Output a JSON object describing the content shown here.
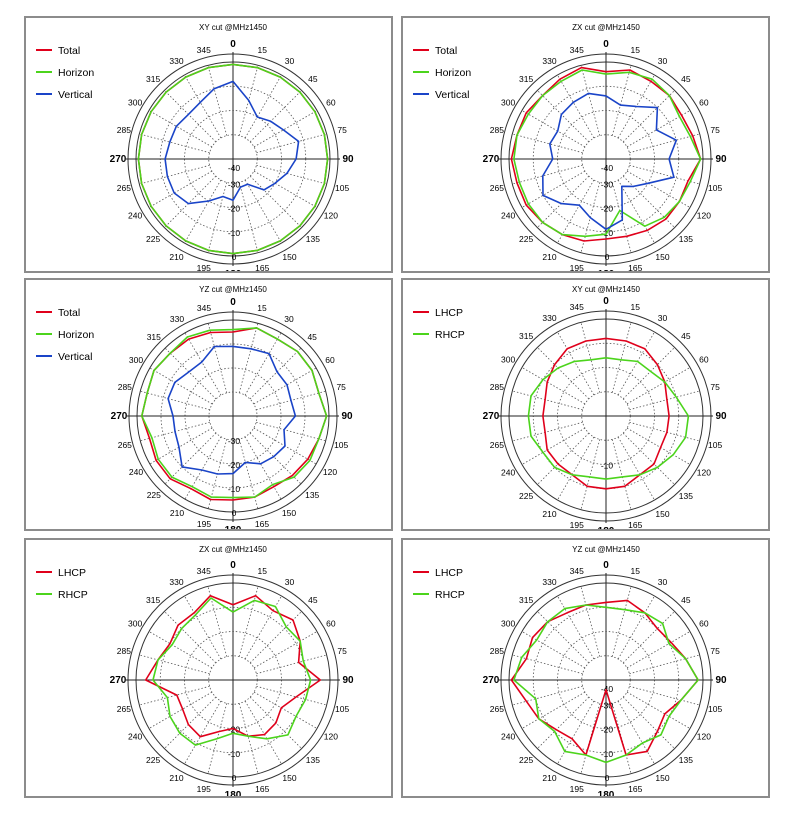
{
  "chart_data": [
    {
      "type": "polar-line",
      "title": "XY cut @MHz1450",
      "rlim": [
        -40,
        0
      ],
      "radial_ticks": [
        "-40",
        "-30",
        "-20",
        "-10",
        "0"
      ],
      "angle_ticks": [
        "0",
        "15",
        "30",
        "45",
        "60",
        "75",
        "90",
        "105",
        "120",
        "135",
        "150",
        "165",
        "180",
        "195",
        "210",
        "225",
        "240",
        "265",
        "270",
        "285",
        "300",
        "315",
        "330",
        "345"
      ],
      "legend": "top-left",
      "series": [
        {
          "name": "Total",
          "color": "#e0001b",
          "r": [
            -1,
            -1,
            -1,
            -1,
            -1,
            -1,
            -1,
            -1,
            -1,
            -1,
            -1,
            -1,
            -1,
            -1,
            -1,
            -1,
            -1,
            -1,
            -1,
            -1,
            -1,
            -1,
            -1,
            -1
          ]
        },
        {
          "name": "Horizon",
          "color": "#4cd41c",
          "r": [
            -1,
            -1,
            -1,
            -1,
            -1,
            -1,
            -1,
            -1,
            -1,
            -1,
            -1,
            -1,
            -1,
            -1,
            -1,
            -1,
            -1,
            -1,
            -1,
            -1,
            -1,
            -1,
            -1,
            -1
          ]
        },
        {
          "name": "Vertical",
          "color": "#1a44c8",
          "r": [
            -8,
            -15,
            -20,
            -18,
            -16,
            -12,
            -14,
            -17,
            -20,
            -22,
            -28,
            -28,
            -23,
            -24,
            -20,
            -14,
            -12,
            -12,
            -12,
            -13,
            -13,
            -14,
            -13,
            -10
          ]
        }
      ]
    },
    {
      "type": "polar-line",
      "title": "ZX cut @MHz1450",
      "rlim": [
        -40,
        0
      ],
      "radial_ticks": [
        "-40",
        "-30",
        "-20",
        "-10",
        "0"
      ],
      "angle_ticks": [
        "0",
        "15",
        "30",
        "45",
        "60",
        "75",
        "90",
        "105",
        "120",
        "135",
        "150",
        "165",
        "180",
        "195",
        "210",
        "225",
        "240",
        "265",
        "270",
        "285",
        "300",
        "315",
        "330",
        "345"
      ],
      "legend": "top-left",
      "series": [
        {
          "name": "Total",
          "color": "#e0001b",
          "r": [
            -4,
            -2,
            -3,
            -3,
            -4,
            -3,
            -1,
            -5,
            -5,
            -5,
            -6,
            -7,
            -7,
            -5,
            -4,
            -3,
            -2,
            -2,
            -1,
            -2,
            -2,
            -3,
            -2,
            -1
          ]
        },
        {
          "name": "Horizon",
          "color": "#4cd41c",
          "r": [
            -5,
            -3,
            -2,
            -3,
            -5,
            -4,
            -1,
            -4,
            -5,
            -6,
            -8,
            -18,
            -9,
            -7,
            -4,
            -3,
            -3,
            -3,
            -2,
            -2,
            -3,
            -3,
            -3,
            -2
          ]
        },
        {
          "name": "Vertical",
          "color": "#1a44c8",
          "r": [
            -14,
            -17,
            -15,
            -10,
            -16,
            -10,
            -14,
            -11,
            -20,
            -24,
            -27,
            -14,
            -11,
            -15,
            -18,
            -14,
            -10,
            -13,
            -18,
            -16,
            -17,
            -14,
            -13,
            -12
          ]
        }
      ]
    },
    {
      "type": "polar-line",
      "title": "YZ cut @MHz1450",
      "rlim": [
        -40,
        0
      ],
      "radial_ticks": [
        "-30",
        "-20",
        "-10",
        "0"
      ],
      "angle_ticks": [
        "0",
        "15",
        "30",
        "45",
        "60",
        "75",
        "90",
        "105",
        "120",
        "135",
        "150",
        "165",
        "180",
        "195",
        "210",
        "225",
        "240",
        "265",
        "270",
        "285",
        "300",
        "315",
        "330",
        "345"
      ],
      "legend": "top-left",
      "series": [
        {
          "name": "Total",
          "color": "#e0001b",
          "r": [
            -5,
            -2,
            -3,
            -2,
            -2,
            -3,
            -1,
            -3,
            -4,
            -5,
            -6,
            -5,
            -5,
            -4,
            -5,
            -3,
            -3,
            -4,
            -2,
            -3,
            -2,
            -3,
            -3,
            -4
          ]
        },
        {
          "name": "Horizon",
          "color": "#4cd41c",
          "r": [
            -4,
            -2,
            -3,
            -2,
            -2,
            -3,
            -1,
            -3,
            -3,
            -4,
            -7,
            -5,
            -6,
            -5,
            -6,
            -4,
            -4,
            -5,
            -2,
            -3,
            -2,
            -3,
            -2,
            -3
          ]
        },
        {
          "name": "Vertical",
          "color": "#1a44c8",
          "r": [
            -11,
            -11,
            -10,
            -14,
            -14,
            -15,
            -14,
            -18,
            -15,
            -16,
            -17,
            -20,
            -16,
            -15,
            -14,
            -10,
            -14,
            -15,
            -15,
            -12,
            -12,
            -14,
            -14,
            -10
          ]
        }
      ]
    },
    {
      "type": "polar-line",
      "title": "XY cut @MHz1450",
      "rlim": [
        -20,
        0
      ],
      "radial_ticks": [
        "-10"
      ],
      "angle_ticks": [
        "0",
        "15",
        "30",
        "45",
        "60",
        "75",
        "90",
        "105",
        "120",
        "135",
        "150",
        "165",
        "180",
        "195",
        "210",
        "225",
        "240",
        "265",
        "270",
        "285",
        "300",
        "315",
        "330",
        "345"
      ],
      "legend": "top-left",
      "series": [
        {
          "name": "LHCP",
          "color": "#e0001b",
          "r": [
            -4,
            -4,
            -4,
            -5,
            -6,
            -7,
            -7,
            -7,
            -7,
            -6,
            -6,
            -5,
            -5,
            -5,
            -6,
            -6,
            -6,
            -7,
            -7,
            -7,
            -6,
            -5,
            -4,
            -4
          ]
        },
        {
          "name": "RHCP",
          "color": "#4cd41c",
          "r": [
            -8,
            -8,
            -7,
            -7,
            -6,
            -5,
            -3,
            -3,
            -4,
            -5,
            -6,
            -7,
            -7,
            -7,
            -6,
            -5,
            -5,
            -4,
            -4,
            -4,
            -5,
            -6,
            -7,
            -8
          ]
        }
      ]
    },
    {
      "type": "polar-line",
      "title": "ZX cut @MHz1450",
      "rlim": [
        -40,
        0
      ],
      "radial_ticks": [
        "-20",
        "-10",
        "0"
      ],
      "angle_ticks": [
        "0",
        "15",
        "30",
        "45",
        "60",
        "75",
        "90",
        "105",
        "120",
        "135",
        "150",
        "165",
        "180",
        "195",
        "210",
        "225",
        "240",
        "265",
        "270",
        "285",
        "300",
        "315",
        "330",
        "345"
      ],
      "legend": "top-left",
      "series": [
        {
          "name": "LHCP",
          "color": "#e0001b",
          "r": [
            -9,
            -4,
            -7,
            -5,
            -8,
            -12,
            -4,
            -13,
            -17,
            -15,
            -14,
            -16,
            -20,
            -18,
            -13,
            -14,
            -16,
            -16,
            -4,
            -8,
            -10,
            -8,
            -8,
            -4
          ]
        },
        {
          "name": "RHCP",
          "color": "#4cd41c",
          "r": [
            -12,
            -6,
            -5,
            -9,
            -8,
            -10,
            -8,
            -9,
            -10,
            -8,
            -12,
            -16,
            -18,
            -15,
            -9,
            -9,
            -10,
            -12,
            -7,
            -8,
            -11,
            -10,
            -9,
            -5
          ]
        }
      ]
    },
    {
      "type": "polar-line",
      "title": "YZ cut @MHz1450",
      "rlim": [
        -40,
        0
      ],
      "radial_ticks": [
        "-40",
        "-30",
        "-20",
        "-10",
        "0"
      ],
      "angle_ticks": [
        "0",
        "15",
        "30",
        "45",
        "60",
        "75",
        "90",
        "105",
        "120",
        "135",
        "150",
        "165",
        "180",
        "195",
        "210",
        "225",
        "240",
        "265",
        "270",
        "285",
        "300",
        "315",
        "330",
        "345"
      ],
      "legend": "top-left",
      "series": [
        {
          "name": "LHCP",
          "color": "#e0001b",
          "r": [
            -8,
            -6,
            -8,
            -10,
            -9,
            -6,
            -2,
            -8,
            -12,
            -10,
            -6,
            -8,
            -36,
            -8,
            -12,
            -11,
            -8,
            -6,
            -1,
            -6,
            -5,
            -6,
            -8,
            -8
          ]
        },
        {
          "name": "RHCP",
          "color": "#4cd41c",
          "r": [
            -10,
            -10,
            -8,
            -7,
            -10,
            -6,
            -2,
            -8,
            -10,
            -8,
            -10,
            -8,
            -6,
            -8,
            -6,
            -10,
            -8,
            -10,
            -2,
            -4,
            -7,
            -6,
            -6,
            -8
          ]
        }
      ]
    }
  ]
}
